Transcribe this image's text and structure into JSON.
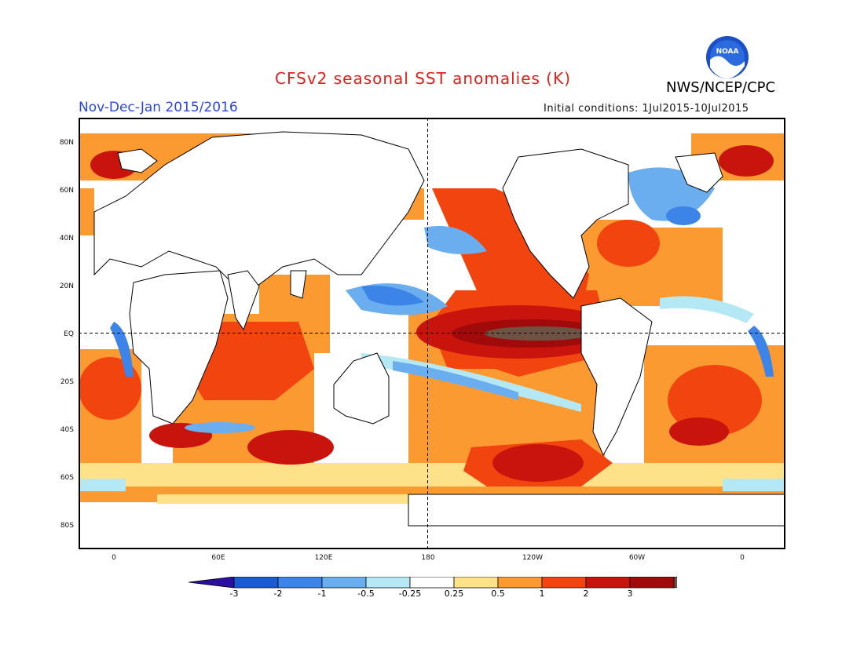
{
  "header": {
    "title": "CFSv2 seasonal SST anomalies (K)",
    "org": "NWS/NCEP/CPC",
    "logo_text": "NOAA",
    "period": "Nov-Dec-Jan 2015/2016",
    "initial_conditions": "Initial conditions: 1Jul2015-10Jul2015"
  },
  "map": {
    "lat_ticks": [
      "80N",
      "60N",
      "40N",
      "20N",
      "EQ",
      "20S",
      "40S",
      "60S",
      "80S"
    ],
    "lon_ticks": [
      "0",
      "60E",
      "120E",
      "180",
      "120W",
      "60W",
      "0"
    ],
    "reference_lines": [
      "EQ",
      "180"
    ]
  },
  "legend": {
    "labels": [
      "-3",
      "-2",
      "-1",
      "-0.5",
      "-0.25",
      "0.25",
      "0.5",
      "1",
      "2",
      "3"
    ],
    "colors": [
      "#2a0fa0",
      "#1a5ad2",
      "#3c84e8",
      "#6aaef0",
      "#b4e8f4",
      "#ffffff",
      "#fde28a",
      "#fc9a32",
      "#f2440e",
      "#c8140c",
      "#a00a0a",
      "#6e5244"
    ]
  }
}
